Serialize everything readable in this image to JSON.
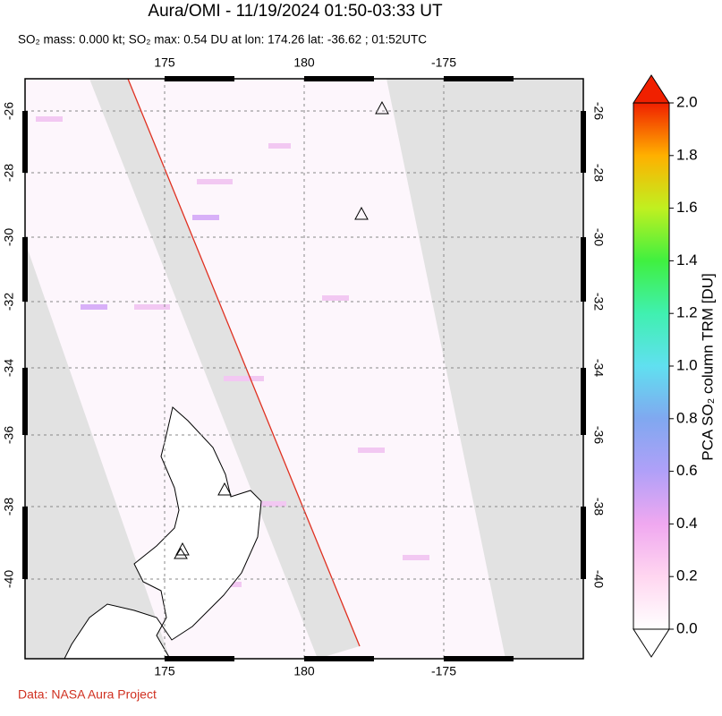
{
  "header": {
    "title": "Aura/OMI - 11/19/2024 01:50-03:33 UT",
    "subtitle": "SO₂ mass: 0.000 kt; SO₂ max: 0.54 DU at lon: 174.26 lat: -36.62 ; 01:52UTC"
  },
  "map": {
    "lon_ticks": [
      "175",
      "180",
      "-175"
    ],
    "lat_ticks": [
      "-26",
      "-28",
      "-30",
      "-32",
      "-34",
      "-36",
      "-38",
      "-40"
    ]
  },
  "colorbar": {
    "label": "PCA SO₂ column TRM [DU]",
    "ticks": [
      "0.0",
      "0.2",
      "0.4",
      "0.6",
      "0.8",
      "1.0",
      "1.2",
      "1.4",
      "1.6",
      "1.8",
      "2.0"
    ]
  },
  "footer": {
    "source": "Data: NASA Aura Project"
  }
}
